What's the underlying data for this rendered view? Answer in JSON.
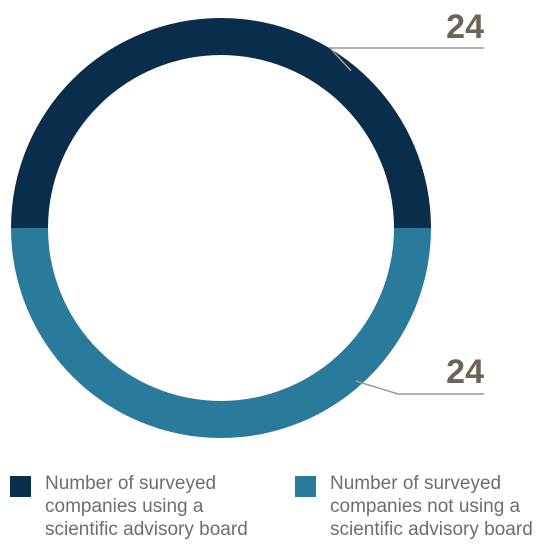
{
  "chart_data": {
    "type": "pie",
    "style": "donut",
    "categories": [
      "Number of surveyed companies using a scientific advisory board",
      "Number of surveyed companies not using a scientific advisory board"
    ],
    "values": [
      24,
      24
    ],
    "value_labels": [
      "24",
      "24"
    ],
    "title": "",
    "legend": "bottom",
    "colors": [
      "#0b2d4c",
      "#2a7a9b"
    ]
  },
  "style": {
    "leader_line_color": "#9a9a9a",
    "value_label_color": "#6e6357"
  }
}
